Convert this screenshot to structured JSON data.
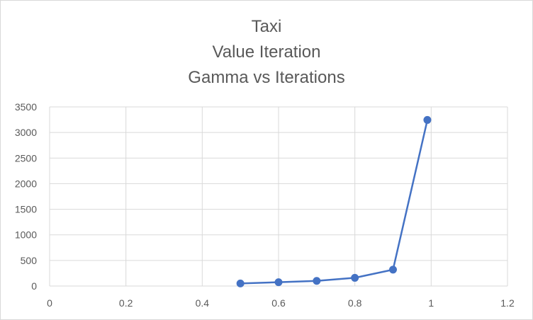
{
  "chart_data": {
    "type": "scatter",
    "title_lines": [
      "Taxi",
      "Value Iteration",
      "Gamma vs Iterations"
    ],
    "xlabel": "",
    "ylabel": "",
    "xlim": [
      0,
      1.2
    ],
    "ylim": [
      0,
      3500
    ],
    "xticks": [
      0,
      0.2,
      0.4,
      0.6,
      0.8,
      1,
      1.2
    ],
    "yticks": [
      0,
      500,
      1000,
      1500,
      2000,
      2500,
      3000,
      3500
    ],
    "grid": true,
    "legend": "none",
    "series": [
      {
        "x": [
          0.5,
          0.6,
          0.7,
          0.8,
          0.9,
          0.99
        ],
        "y": [
          50,
          75,
          100,
          160,
          320,
          3245
        ],
        "color": "#4472C4",
        "marker": "circle",
        "line": "straight"
      }
    ]
  },
  "colors": {
    "series": "#4472C4",
    "grid": "#d9d9d9",
    "text": "#595959"
  }
}
